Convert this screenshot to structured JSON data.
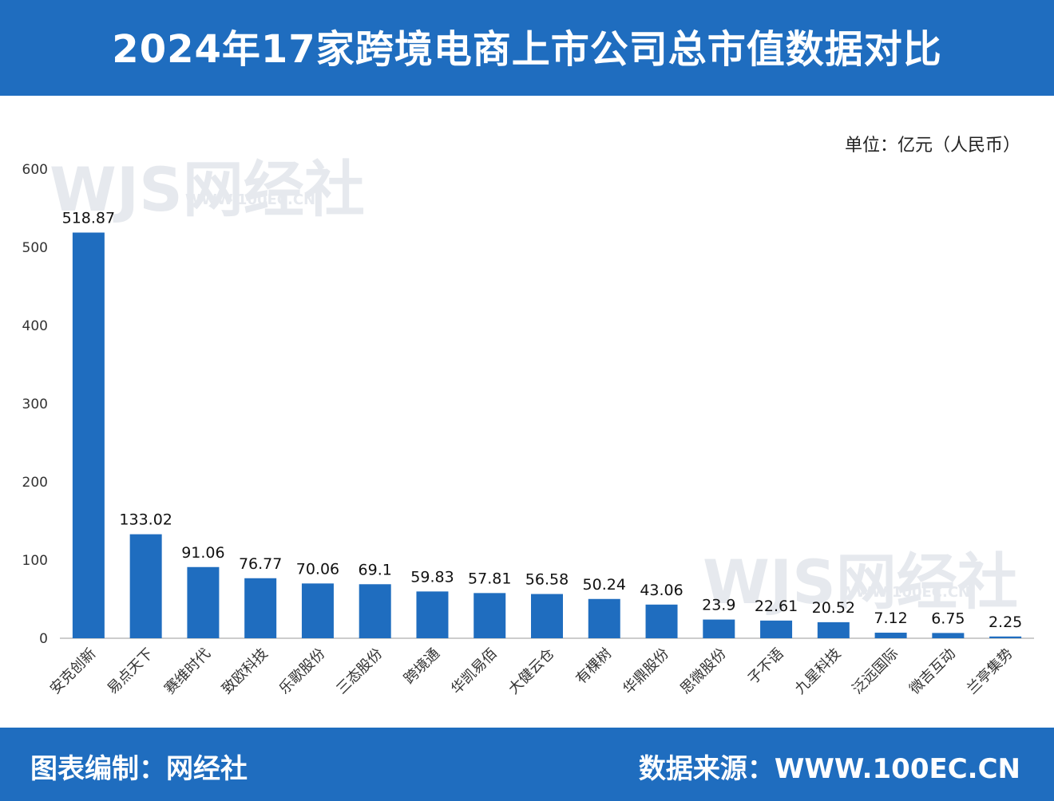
{
  "header": {
    "title": "2024年17家跨境电商上市公司总市值数据对比"
  },
  "unit_label": "单位：亿元（人民币）",
  "footer": {
    "left": "图表编制：网经社",
    "right": "数据来源：WWW.100EC.CN"
  },
  "watermark": {
    "logo": "WJS网经社",
    "url": "WWW.100EC.CN"
  },
  "colors": {
    "brand": "#1f6dbf",
    "bar": "#1f6dbf"
  },
  "chart_data": {
    "type": "bar",
    "title": "2024年17家跨境电商上市公司总市值数据对比",
    "xlabel": "",
    "ylabel": "",
    "ylim": [
      0,
      600
    ],
    "yticks": [
      0,
      100,
      200,
      300,
      400,
      500,
      600
    ],
    "grid": false,
    "categories": [
      "安克创新",
      "易点天下",
      "赛维时代",
      "致欧科技",
      "乐歌股份",
      "三态股份",
      "跨境通",
      "华凯易佰",
      "大健云仓",
      "有棵树",
      "华鼎股份",
      "思微股份",
      "子不语",
      "九星科技",
      "泛远国际",
      "微吉互动",
      "兰亭集势"
    ],
    "values": [
      518.87,
      133.02,
      91.06,
      76.77,
      70.06,
      69.1,
      59.83,
      57.81,
      56.58,
      50.24,
      43.06,
      23.9,
      22.61,
      20.52,
      7.12,
      6.75,
      2.25
    ],
    "value_labels": [
      "518.87",
      "133.02",
      "91.06",
      "76.77",
      "70.06",
      "69.1",
      "59.83",
      "57.81",
      "56.58",
      "50.24",
      "43.06",
      "23.9",
      "22.61",
      "20.52",
      "7.12",
      "6.75",
      "2.25"
    ]
  }
}
